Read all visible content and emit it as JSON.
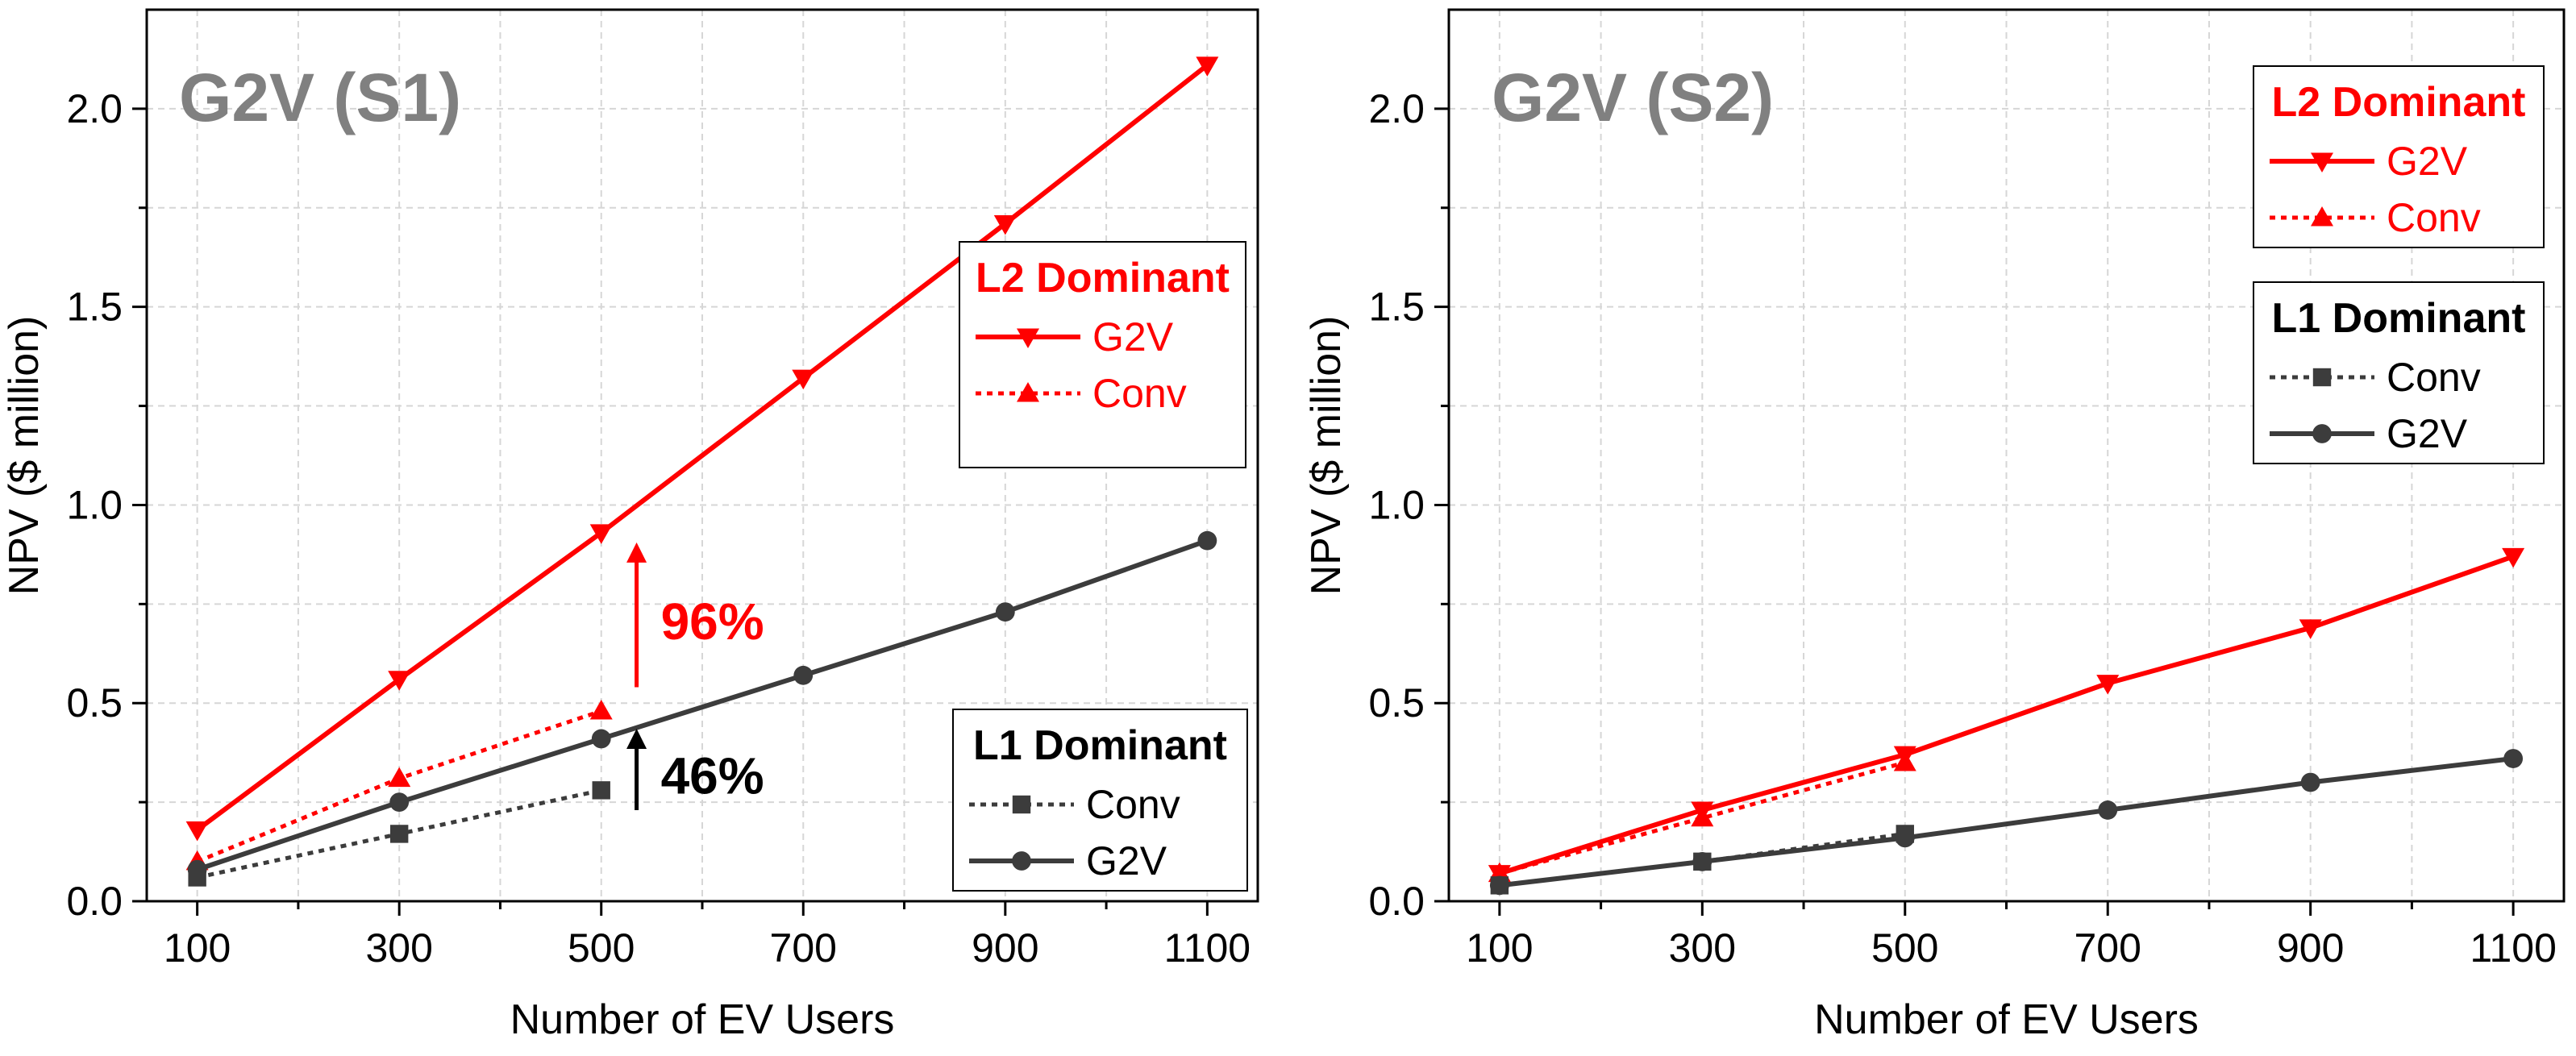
{
  "colors": {
    "red": "#ff0000",
    "gray": "#3c3c3c",
    "title_gray": "#808080",
    "grid": "#d6d6d6"
  },
  "chart_data": [
    {
      "type": "line",
      "title": "G2V (S1)",
      "xlabel": "Number of EV Users",
      "ylabel": "NPV ($ million)",
      "xlim": [
        50,
        1150
      ],
      "ylim": [
        0,
        2.25
      ],
      "x_ticks": [
        100,
        300,
        500,
        700,
        900,
        1100
      ],
      "x_tick_labels": [
        "100",
        "300",
        "500",
        "700",
        "900",
        "1100"
      ],
      "y_ticks": [
        0,
        0.5,
        1,
        1.5,
        2
      ],
      "y_tick_labels": [
        "0.0",
        "0.5",
        "1.0",
        "1.5",
        "2.0"
      ],
      "grid": true,
      "series": [
        {
          "group": "L2",
          "name": "G2V",
          "color": "#ff0000",
          "line": "solid",
          "marker": "triangle-down",
          "x": [
            100,
            300,
            500,
            700,
            900,
            1100
          ],
          "y": [
            0.18,
            0.56,
            0.93,
            1.32,
            1.71,
            2.11
          ]
        },
        {
          "group": "L2",
          "name": "Conv",
          "color": "#ff0000",
          "line": "dotted",
          "marker": "triangle-up",
          "x": [
            100,
            300,
            500
          ],
          "y": [
            0.1,
            0.31,
            0.48
          ]
        },
        {
          "group": "L1",
          "name": "G2V",
          "color": "#3c3c3c",
          "line": "solid",
          "marker": "circle",
          "x": [
            100,
            300,
            500,
            700,
            900,
            1100
          ],
          "y": [
            0.08,
            0.25,
            0.41,
            0.57,
            0.73,
            0.91
          ]
        },
        {
          "group": "L1",
          "name": "Conv",
          "color": "#3c3c3c",
          "line": "dotted",
          "marker": "square",
          "x": [
            100,
            300,
            500
          ],
          "y": [
            0.06,
            0.17,
            0.28
          ]
        }
      ],
      "legends": [
        {
          "title": "L2 Dominant",
          "color": "#ff0000",
          "placement": "right-middle",
          "entries": [
            {
              "label": "G2V",
              "line": "solid",
              "marker": "triangle-down"
            },
            {
              "label": "Conv",
              "line": "dotted",
              "marker": "triangle-up"
            }
          ]
        },
        {
          "title": "L1 Dominant",
          "color": "#000000",
          "placement": "bottom-right",
          "entries": [
            {
              "label": "Conv",
              "line": "dotted",
              "marker": "square"
            },
            {
              "label": "G2V",
              "line": "solid",
              "marker": "circle"
            }
          ]
        }
      ],
      "annotations": [
        {
          "text": "96%",
          "color": "#ff0000",
          "arrow_from": [
            535,
            0.54
          ],
          "arrow_to": [
            535,
            0.88
          ]
        },
        {
          "text": "46%",
          "color": "#000000",
          "arrow_from": [
            535,
            0.23
          ],
          "arrow_to": [
            535,
            0.41
          ]
        }
      ]
    },
    {
      "type": "line",
      "title": "G2V (S2)",
      "xlabel": "Number of EV Users",
      "ylabel": "NPV ($ million)",
      "xlim": [
        50,
        1150
      ],
      "ylim": [
        0,
        2.25
      ],
      "x_ticks": [
        100,
        300,
        500,
        700,
        900,
        1100
      ],
      "x_tick_labels": [
        "100",
        "300",
        "500",
        "700",
        "900",
        "1100"
      ],
      "y_ticks": [
        0,
        0.5,
        1,
        1.5,
        2
      ],
      "y_tick_labels": [
        "0.0",
        "0.5",
        "1.0",
        "1.5",
        "2.0"
      ],
      "grid": true,
      "series": [
        {
          "group": "L2",
          "name": "G2V",
          "color": "#ff0000",
          "line": "solid",
          "marker": "triangle-down",
          "x": [
            100,
            300,
            500,
            700,
            900,
            1100
          ],
          "y": [
            0.07,
            0.23,
            0.37,
            0.55,
            0.69,
            0.87
          ]
        },
        {
          "group": "L2",
          "name": "Conv",
          "color": "#ff0000",
          "line": "dotted",
          "marker": "triangle-up",
          "x": [
            100,
            300,
            500
          ],
          "y": [
            0.07,
            0.21,
            0.35
          ]
        },
        {
          "group": "L1",
          "name": "G2V",
          "color": "#3c3c3c",
          "line": "solid",
          "marker": "circle",
          "x": [
            100,
            300,
            500,
            700,
            900,
            1100
          ],
          "y": [
            0.04,
            0.1,
            0.16,
            0.23,
            0.3,
            0.36
          ]
        },
        {
          "group": "L1",
          "name": "Conv",
          "color": "#3c3c3c",
          "line": "dotted",
          "marker": "square",
          "x": [
            100,
            300,
            500
          ],
          "y": [
            0.04,
            0.1,
            0.17
          ]
        }
      ],
      "legends": [
        {
          "title": "L2 Dominant",
          "color": "#ff0000",
          "placement": "top-right",
          "entries": [
            {
              "label": "G2V",
              "line": "solid",
              "marker": "triangle-down"
            },
            {
              "label": "Conv",
              "line": "dotted",
              "marker": "triangle-up"
            }
          ]
        },
        {
          "title": "L1 Dominant",
          "color": "#000000",
          "placement": "right-upper",
          "entries": [
            {
              "label": "Conv",
              "line": "dotted",
              "marker": "square"
            },
            {
              "label": "G2V",
              "line": "solid",
              "marker": "circle"
            }
          ]
        }
      ],
      "annotations": []
    }
  ]
}
